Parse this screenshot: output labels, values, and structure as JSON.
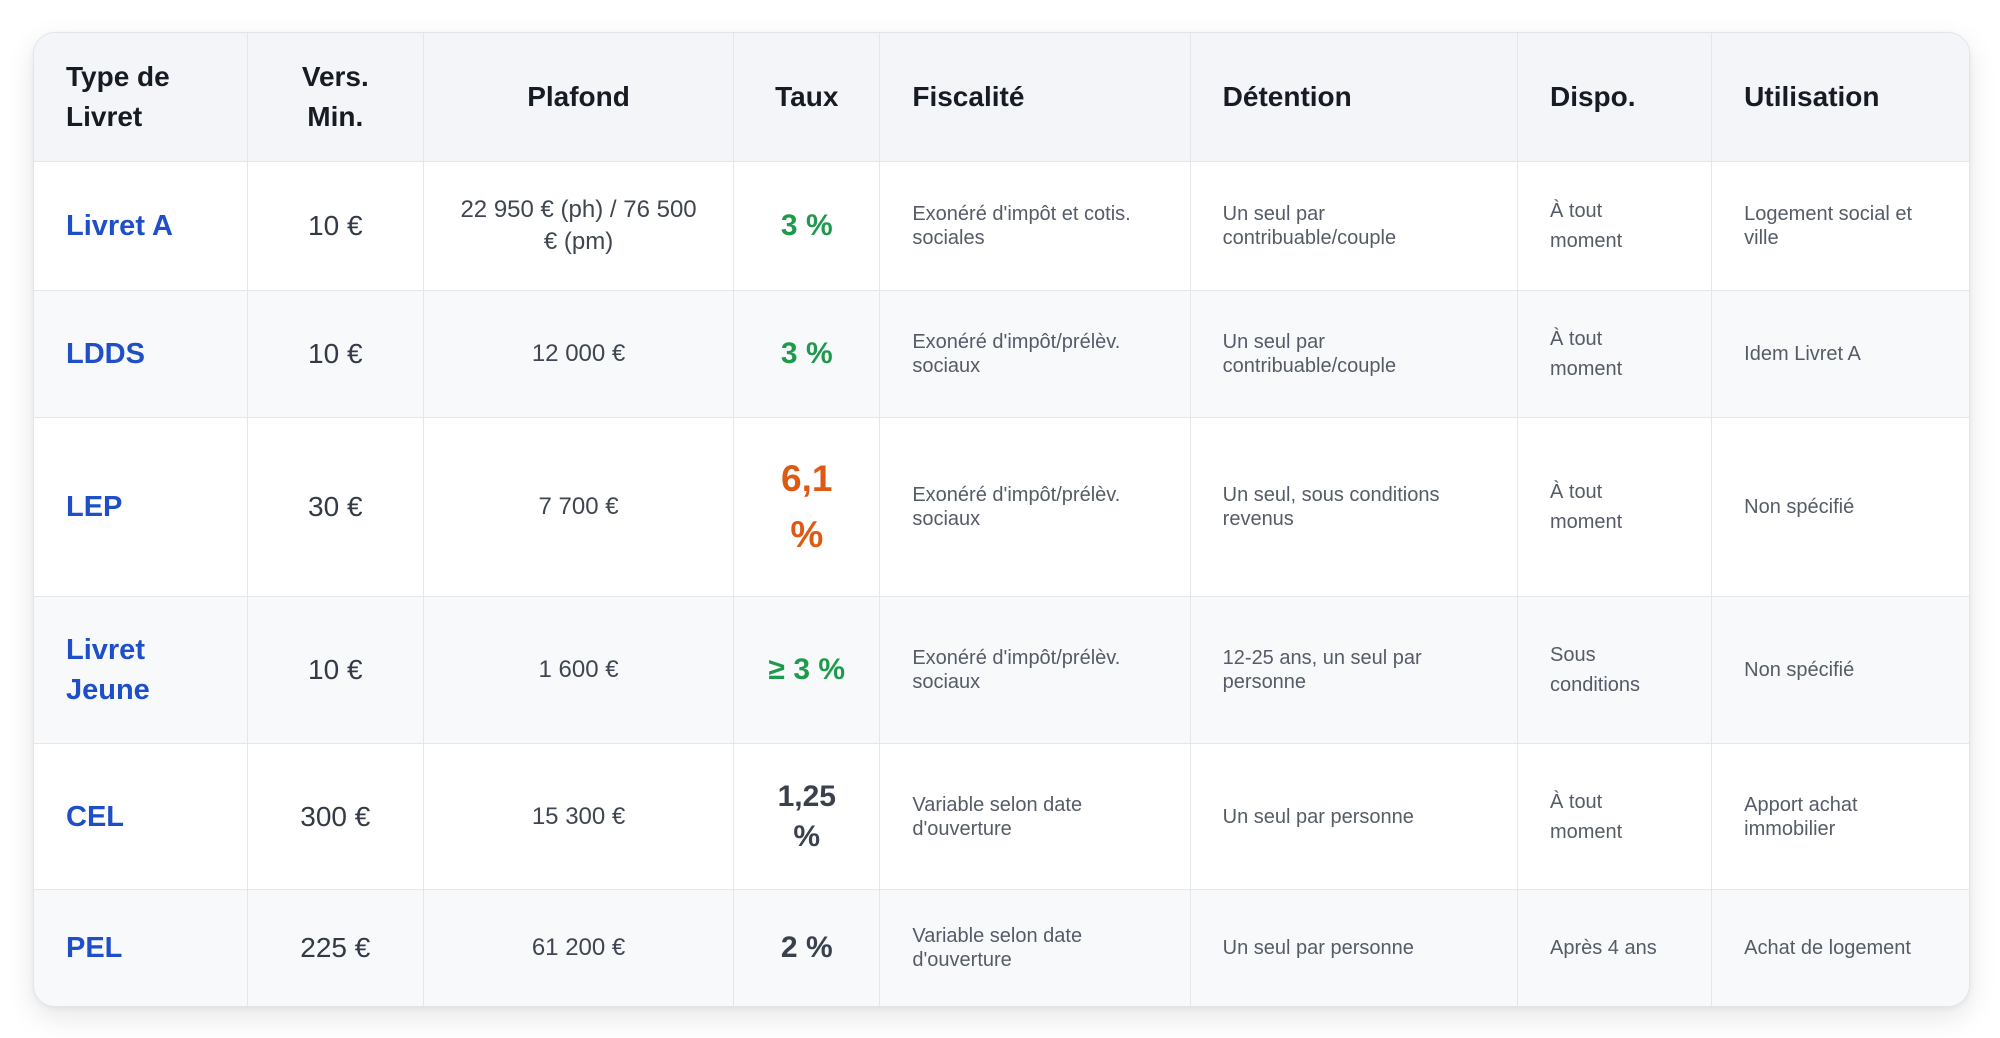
{
  "table": {
    "headers": {
      "type": "Type de Livret",
      "vers": "Vers. Min.",
      "plafond": "Plafond",
      "taux": "Taux",
      "fiscalite": "Fiscalité",
      "detention": "Détention",
      "dispo": "Dispo.",
      "utilisation": "Utilisation"
    },
    "rows": [
      {
        "type": "Livret A",
        "vers": "10 €",
        "plafond": "22 950 € (ph) / 76 500 € (pm)",
        "taux": "3 %",
        "fiscalite": "Exonéré d'impôt et cotis. sociales",
        "detention": "Un seul par contribuable/couple",
        "dispo": "À tout moment",
        "utilisation": "Logement social et ville"
      },
      {
        "type": "LDDS",
        "vers": "10 €",
        "plafond": "12 000 €",
        "taux": "3 %",
        "fiscalite": "Exonéré d'impôt/prélèv. sociaux",
        "detention": "Un seul par contribuable/couple",
        "dispo": "À tout moment",
        "utilisation": "Idem Livret A"
      },
      {
        "type": "LEP",
        "vers": "30 €",
        "plafond": "7 700 €",
        "taux": "6,1 %",
        "fiscalite": "Exonéré d'impôt/prélèv. sociaux",
        "detention": "Un seul, sous conditions revenus",
        "dispo": "À tout moment",
        "utilisation": "Non spécifié"
      },
      {
        "type": "Livret Jeune",
        "vers": "10 €",
        "plafond": "1 600 €",
        "taux": "≥ 3 %",
        "fiscalite": "Exonéré d'impôt/prélèv. sociaux",
        "detention": "12-25 ans, un seul par personne",
        "dispo": "Sous conditions",
        "utilisation": "Non spécifié"
      },
      {
        "type": "CEL",
        "vers": "300 €",
        "plafond": "15 300 €",
        "taux": "1,25 %",
        "fiscalite": "Variable selon date d'ouverture",
        "detention": "Un seul par personne",
        "dispo": "À tout moment",
        "utilisation": "Apport achat immobilier"
      },
      {
        "type": "PEL",
        "vers": "225 €",
        "plafond": "61 200 €",
        "taux": "2 %",
        "fiscalite": "Variable selon date d'ouverture",
        "detention": "Un seul par personne",
        "dispo": "Après 4 ans",
        "utilisation": "Achat de logement"
      }
    ]
  },
  "colors": {
    "type_link": "#1e4fc9",
    "rate_green": "#1f9a4c",
    "rate_orange": "#dd5a14",
    "rate_gray": "#3a414c",
    "header_bg": "#f3f5f8",
    "stripe_bg": "#f7f9fb"
  }
}
